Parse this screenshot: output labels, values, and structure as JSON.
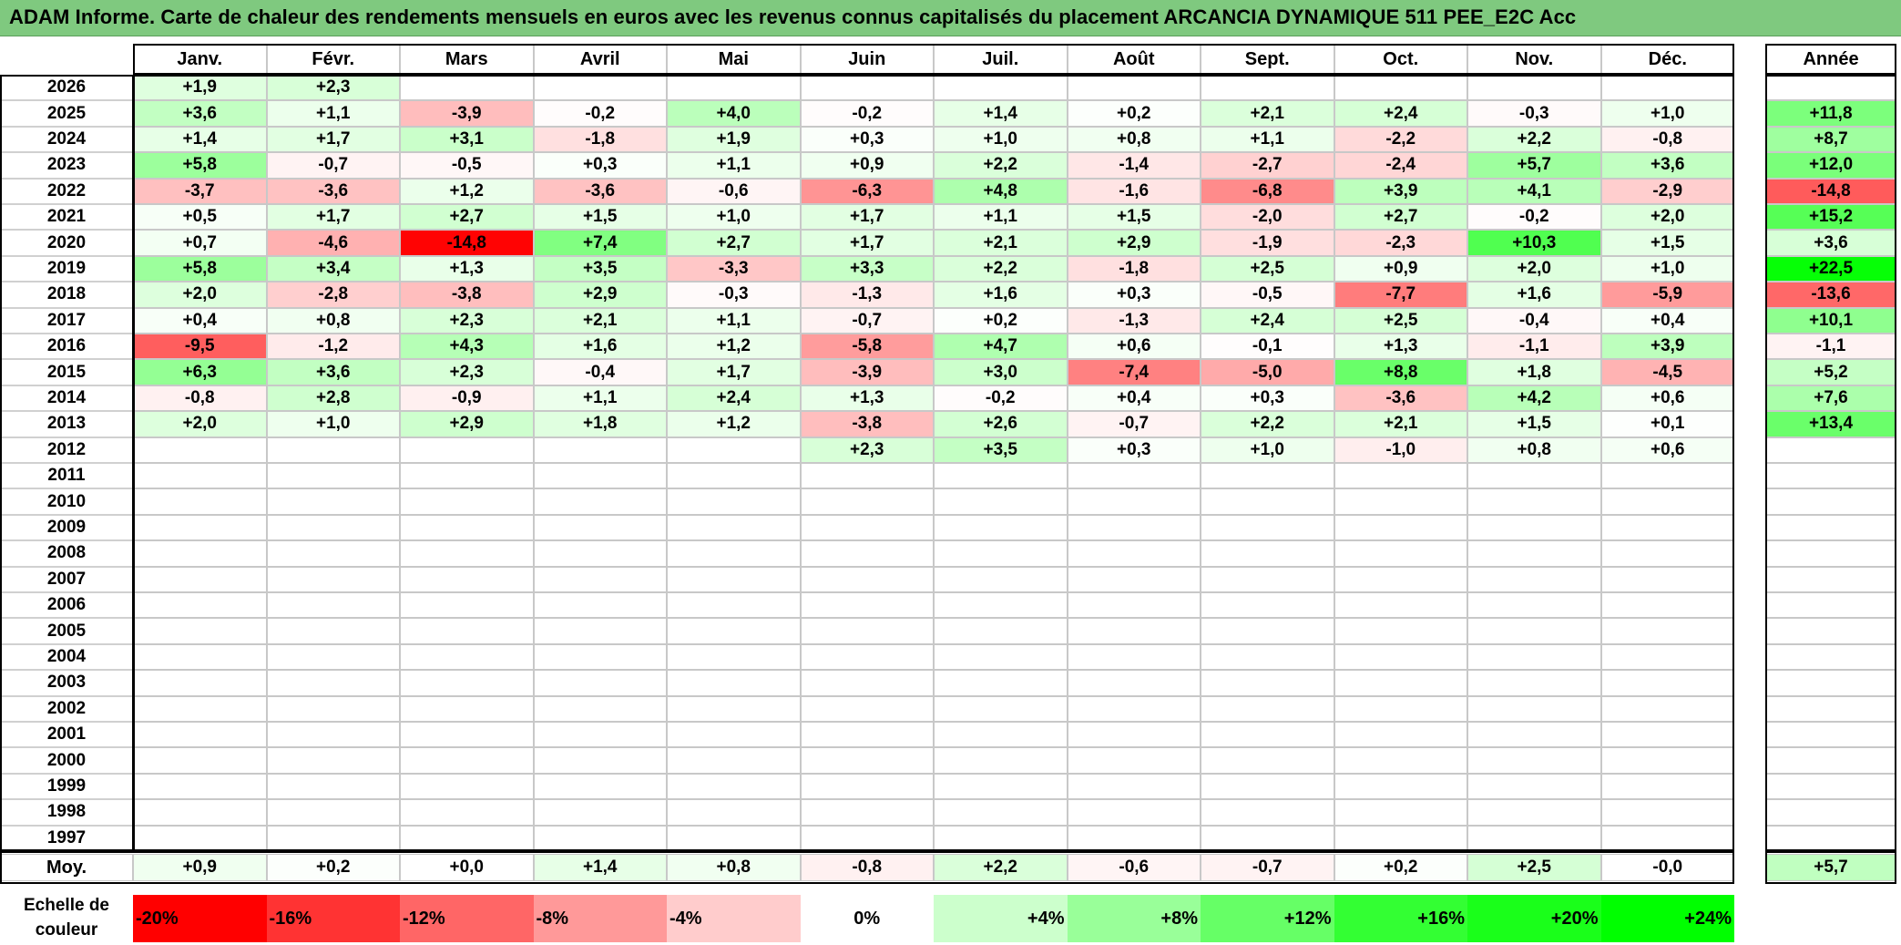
{
  "title": "ADAM Informe. Carte de chaleur des rendements mensuels en euros avec les revenus connus capitalisés du placement ARCANCIA DYNAMIQUE 511 PEE_E2C Acc",
  "colors": {
    "title_bg": "#7fc97f",
    "neg_max": "#ff0000",
    "pos_max": "#00ff00",
    "neutral": "#ffffff"
  },
  "chart_data": {
    "type": "heatmap",
    "title": "ADAM Informe. Carte de chaleur des rendements mensuels en euros avec les revenus connus capitalisés du placement ARCANCIA DYNAMIQUE 511 PEE_E2C Acc",
    "columns": [
      "Janv.",
      "Févr.",
      "Mars",
      "Avril",
      "Mai",
      "Juin",
      "Juil.",
      "Août",
      "Sept.",
      "Oct.",
      "Nov.",
      "Déc."
    ],
    "year_header": "Année",
    "rows": [
      {
        "year": "2026",
        "values": [
          "+1,9",
          "+2,3",
          "",
          "",
          "",
          "",
          "",
          "",
          "",
          "",
          "",
          ""
        ],
        "annual": ""
      },
      {
        "year": "2025",
        "values": [
          "+3,6",
          "+1,1",
          "-3,9",
          "-0,2",
          "+4,0",
          "-0,2",
          "+1,4",
          "+0,2",
          "+2,1",
          "+2,4",
          "-0,3",
          "+1,0"
        ],
        "annual": "+11,8"
      },
      {
        "year": "2024",
        "values": [
          "+1,4",
          "+1,7",
          "+3,1",
          "-1,8",
          "+1,9",
          "+0,3",
          "+1,0",
          "+0,8",
          "+1,1",
          "-2,2",
          "+2,2",
          "-0,8"
        ],
        "annual": "+8,7"
      },
      {
        "year": "2023",
        "values": [
          "+5,8",
          "-0,7",
          "-0,5",
          "+0,3",
          "+1,1",
          "+0,9",
          "+2,2",
          "-1,4",
          "-2,7",
          "-2,4",
          "+5,7",
          "+3,6"
        ],
        "annual": "+12,0"
      },
      {
        "year": "2022",
        "values": [
          "-3,7",
          "-3,6",
          "+1,2",
          "-3,6",
          "-0,6",
          "-6,3",
          "+4,8",
          "-1,6",
          "-6,8",
          "+3,9",
          "+4,1",
          "-2,9"
        ],
        "annual": "-14,8"
      },
      {
        "year": "2021",
        "values": [
          "+0,5",
          "+1,7",
          "+2,7",
          "+1,5",
          "+1,0",
          "+1,7",
          "+1,1",
          "+1,5",
          "-2,0",
          "+2,7",
          "-0,2",
          "+2,0"
        ],
        "annual": "+15,2"
      },
      {
        "year": "2020",
        "values": [
          "+0,7",
          "-4,6",
          "-14,8",
          "+7,4",
          "+2,7",
          "+1,7",
          "+2,1",
          "+2,9",
          "-1,9",
          "-2,3",
          "+10,3",
          "+1,5"
        ],
        "annual": "+3,6"
      },
      {
        "year": "2019",
        "values": [
          "+5,8",
          "+3,4",
          "+1,3",
          "+3,5",
          "-3,3",
          "+3,3",
          "+2,2",
          "-1,8",
          "+2,5",
          "+0,9",
          "+2,0",
          "+1,0"
        ],
        "annual": "+22,5"
      },
      {
        "year": "2018",
        "values": [
          "+2,0",
          "-2,8",
          "-3,8",
          "+2,9",
          "-0,3",
          "-1,3",
          "+1,6",
          "+0,3",
          "-0,5",
          "-7,7",
          "+1,6",
          "-5,9"
        ],
        "annual": "-13,6"
      },
      {
        "year": "2017",
        "values": [
          "+0,4",
          "+0,8",
          "+2,3",
          "+2,1",
          "+1,1",
          "-0,7",
          "+0,2",
          "-1,3",
          "+2,4",
          "+2,5",
          "-0,4",
          "+0,4"
        ],
        "annual": "+10,1"
      },
      {
        "year": "2016",
        "values": [
          "-9,5",
          "-1,2",
          "+4,3",
          "+1,6",
          "+1,2",
          "-5,8",
          "+4,7",
          "+0,6",
          "-0,1",
          "+1,3",
          "-1,1",
          "+3,9"
        ],
        "annual": "-1,1"
      },
      {
        "year": "2015",
        "values": [
          "+6,3",
          "+3,6",
          "+2,3",
          "-0,4",
          "+1,7",
          "-3,9",
          "+3,0",
          "-7,4",
          "-5,0",
          "+8,8",
          "+1,8",
          "-4,5"
        ],
        "annual": "+5,2"
      },
      {
        "year": "2014",
        "values": [
          "-0,8",
          "+2,8",
          "-0,9",
          "+1,1",
          "+2,4",
          "+1,3",
          "-0,2",
          "+0,4",
          "+0,3",
          "-3,6",
          "+4,2",
          "+0,6"
        ],
        "annual": "+7,6"
      },
      {
        "year": "2013",
        "values": [
          "+2,0",
          "+1,0",
          "+2,9",
          "+1,8",
          "+1,2",
          "-3,8",
          "+2,6",
          "-0,7",
          "+2,2",
          "+2,1",
          "+1,5",
          "+0,1"
        ],
        "annual": "+13,4"
      },
      {
        "year": "2012",
        "values": [
          "",
          "",
          "",
          "",
          "",
          "+2,3",
          "+3,5",
          "+0,3",
          "+1,0",
          "-1,0",
          "+0,8",
          "+0,6"
        ],
        "annual": ""
      },
      {
        "year": "2011",
        "values": [
          "",
          "",
          "",
          "",
          "",
          "",
          "",
          "",
          "",
          "",
          "",
          ""
        ],
        "annual": ""
      },
      {
        "year": "2010",
        "values": [
          "",
          "",
          "",
          "",
          "",
          "",
          "",
          "",
          "",
          "",
          "",
          ""
        ],
        "annual": ""
      },
      {
        "year": "2009",
        "values": [
          "",
          "",
          "",
          "",
          "",
          "",
          "",
          "",
          "",
          "",
          "",
          ""
        ],
        "annual": ""
      },
      {
        "year": "2008",
        "values": [
          "",
          "",
          "",
          "",
          "",
          "",
          "",
          "",
          "",
          "",
          "",
          ""
        ],
        "annual": ""
      },
      {
        "year": "2007",
        "values": [
          "",
          "",
          "",
          "",
          "",
          "",
          "",
          "",
          "",
          "",
          "",
          ""
        ],
        "annual": ""
      },
      {
        "year": "2006",
        "values": [
          "",
          "",
          "",
          "",
          "",
          "",
          "",
          "",
          "",
          "",
          "",
          ""
        ],
        "annual": ""
      },
      {
        "year": "2005",
        "values": [
          "",
          "",
          "",
          "",
          "",
          "",
          "",
          "",
          "",
          "",
          "",
          ""
        ],
        "annual": ""
      },
      {
        "year": "2004",
        "values": [
          "",
          "",
          "",
          "",
          "",
          "",
          "",
          "",
          "",
          "",
          "",
          ""
        ],
        "annual": ""
      },
      {
        "year": "2003",
        "values": [
          "",
          "",
          "",
          "",
          "",
          "",
          "",
          "",
          "",
          "",
          "",
          ""
        ],
        "annual": ""
      },
      {
        "year": "2002",
        "values": [
          "",
          "",
          "",
          "",
          "",
          "",
          "",
          "",
          "",
          "",
          "",
          ""
        ],
        "annual": ""
      },
      {
        "year": "2001",
        "values": [
          "",
          "",
          "",
          "",
          "",
          "",
          "",
          "",
          "",
          "",
          "",
          ""
        ],
        "annual": ""
      },
      {
        "year": "2000",
        "values": [
          "",
          "",
          "",
          "",
          "",
          "",
          "",
          "",
          "",
          "",
          "",
          ""
        ],
        "annual": ""
      },
      {
        "year": "1999",
        "values": [
          "",
          "",
          "",
          "",
          "",
          "",
          "",
          "",
          "",
          "",
          "",
          ""
        ],
        "annual": ""
      },
      {
        "year": "1998",
        "values": [
          "",
          "",
          "",
          "",
          "",
          "",
          "",
          "",
          "",
          "",
          "",
          ""
        ],
        "annual": ""
      },
      {
        "year": "1997",
        "values": [
          "",
          "",
          "",
          "",
          "",
          "",
          "",
          "",
          "",
          "",
          "",
          ""
        ],
        "annual": ""
      }
    ],
    "average": {
      "label": "Moy.",
      "values": [
        "+0,9",
        "+0,2",
        "+0,0",
        "+1,4",
        "+0,8",
        "-0,8",
        "+2,2",
        "-0,6",
        "-0,7",
        "+0,2",
        "+2,5",
        "-0,0"
      ],
      "annual": "+5,7"
    },
    "color_scale": {
      "label_line1": "Echelle de",
      "label_line2": "couleur",
      "stops": [
        {
          "label": "-20%",
          "value": -20,
          "color": "#ff0000"
        },
        {
          "label": "-16%",
          "value": -16,
          "color": "#ff3333"
        },
        {
          "label": "-12%",
          "value": -12,
          "color": "#ff6666"
        },
        {
          "label": "-8%",
          "value": -8,
          "color": "#ff9999"
        },
        {
          "label": "-4%",
          "value": -4,
          "color": "#ffcccc"
        },
        {
          "label": "0%",
          "value": 0,
          "color": "#ffffff"
        },
        {
          "label": "+4%",
          "value": 4,
          "color": "#ccffcc"
        },
        {
          "label": "+8%",
          "value": 8,
          "color": "#99ff99"
        },
        {
          "label": "+12%",
          "value": 12,
          "color": "#66ff66"
        },
        {
          "label": "+16%",
          "value": 16,
          "color": "#33ff33"
        },
        {
          "label": "+20%",
          "value": 20,
          "color": "#1aff1a"
        },
        {
          "label": "+24%",
          "value": 24,
          "color": "#00ff00"
        }
      ]
    }
  }
}
